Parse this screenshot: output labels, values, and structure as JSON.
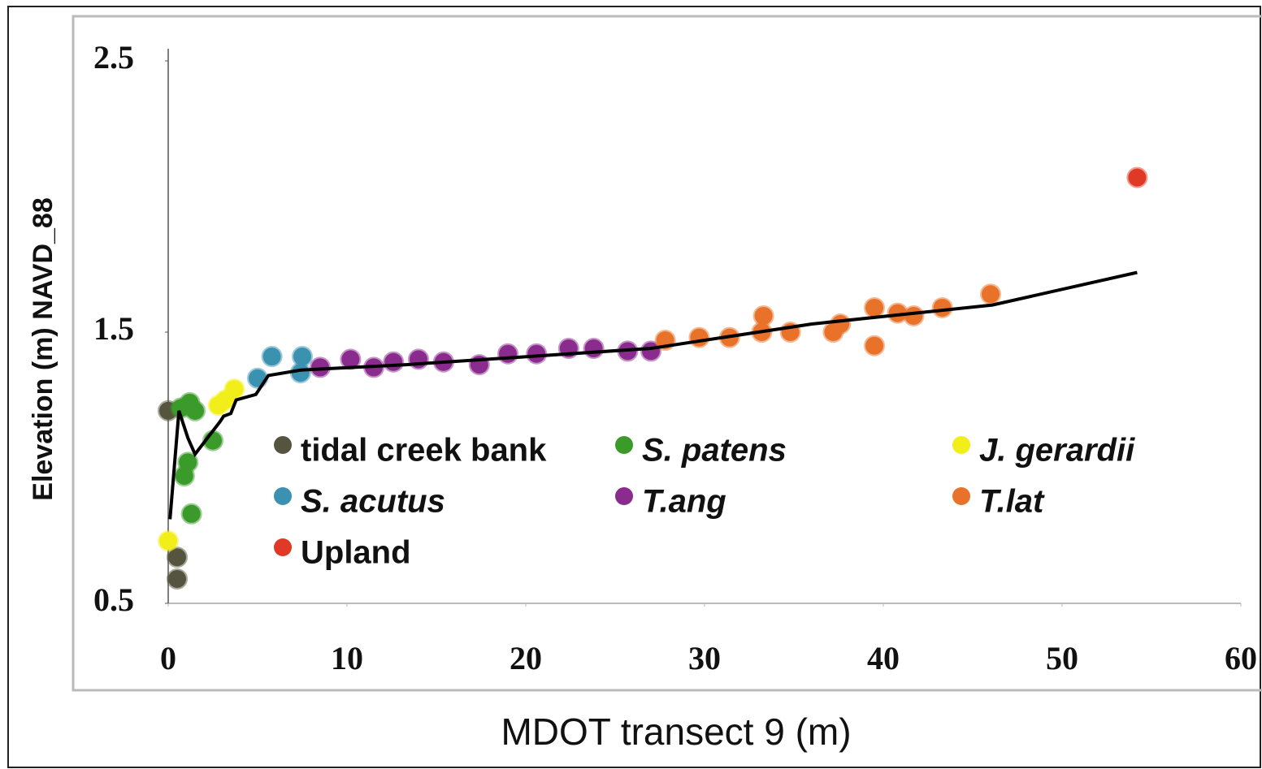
{
  "chart_data": {
    "type": "scatter",
    "xlabel": "MDOT transect 9 (m)",
    "ylabel": "Elevation (m) NAVD_88",
    "xlim": [
      0,
      60
    ],
    "xticks": [
      0,
      10,
      20,
      30,
      40,
      50,
      60
    ],
    "ylim": [
      0.5,
      2.5
    ],
    "yticks": [
      0.5,
      1.5,
      2.5
    ],
    "series": [
      {
        "name": "tidal creek bank",
        "color": "#55553f",
        "italic": false,
        "x": [
          0,
          0.5,
          0.5
        ],
        "values": [
          1.21,
          0.67,
          0.59
        ]
      },
      {
        "name": "S. patens",
        "color": "#3a9a2a",
        "italic": true,
        "x": [
          0.7,
          1.2,
          1.5,
          2.5,
          1.1,
          0.9,
          1.3
        ],
        "values": [
          1.22,
          1.24,
          1.21,
          1.1,
          1.02,
          0.97,
          0.83
        ]
      },
      {
        "name": "J. gerardii",
        "color": "#f2ee1a",
        "italic": true,
        "x": [
          0,
          2.8,
          3.7,
          3.2
        ],
        "values": [
          0.73,
          1.23,
          1.29,
          1.25
        ]
      },
      {
        "name": "S. acutus",
        "color": "#3b92b0",
        "italic": true,
        "x": [
          5,
          5.8,
          7.4,
          7.5
        ],
        "values": [
          1.33,
          1.41,
          1.35,
          1.41
        ]
      },
      {
        "name": "T.ang",
        "color": "#8a2b8e",
        "italic": true,
        "x": [
          8.5,
          10.2,
          11.5,
          12.6,
          14,
          15.4,
          17.4,
          19,
          20.6,
          22.4,
          23.8,
          25.7,
          27
        ],
        "values": [
          1.37,
          1.4,
          1.37,
          1.39,
          1.4,
          1.39,
          1.38,
          1.42,
          1.42,
          1.44,
          1.44,
          1.43,
          1.43
        ]
      },
      {
        "name": "T.lat",
        "color": "#e8722a",
        "italic": true,
        "x": [
          27.8,
          29.7,
          31.4,
          33.2,
          33.3,
          34.8,
          37.2,
          37.6,
          39.5,
          39.5,
          40.8,
          41.7,
          43.3,
          46
        ],
        "values": [
          1.47,
          1.48,
          1.48,
          1.5,
          1.56,
          1.5,
          1.5,
          1.53,
          1.45,
          1.59,
          1.57,
          1.56,
          1.59,
          1.64
        ]
      },
      {
        "name": "Upland",
        "color": "#e03a26",
        "italic": false,
        "x": [
          54.2
        ],
        "values": [
          2.07
        ]
      }
    ],
    "trend": {
      "color": "#000000",
      "x": [
        0.1,
        0.6,
        1.1,
        1.5,
        2.9,
        3.1,
        3.5,
        3.8,
        4.9,
        5.6,
        7.4,
        13.3,
        27,
        36,
        46.1,
        54.2
      ],
      "values": [
        0.81,
        1.21,
        1.11,
        1.05,
        1.17,
        1.19,
        1.2,
        1.25,
        1.27,
        1.34,
        1.36,
        1.38,
        1.44,
        1.53,
        1.6,
        1.72
      ]
    }
  }
}
